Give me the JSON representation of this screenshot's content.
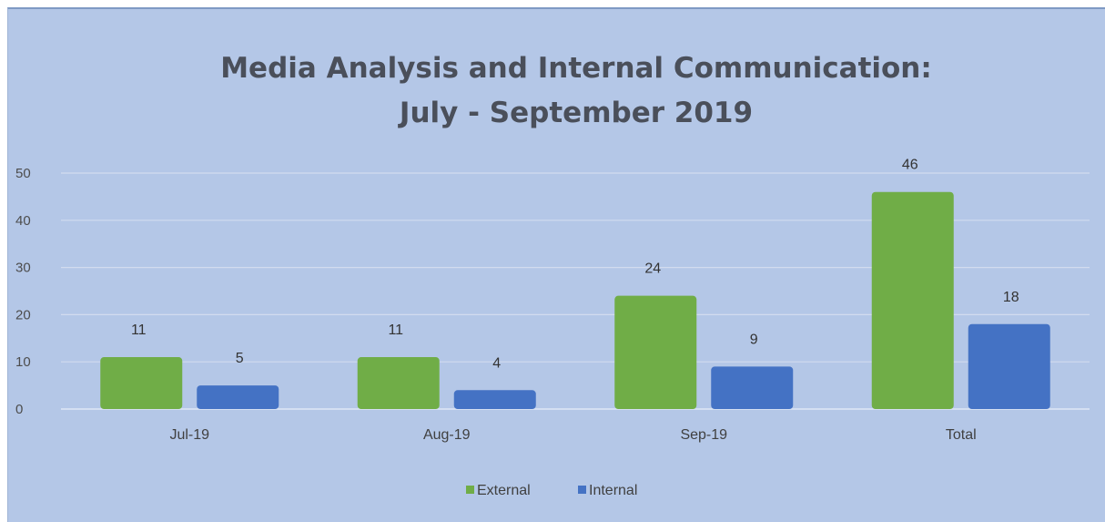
{
  "chart_data": {
    "type": "bar",
    "title_lines": [
      "Media Analysis and Internal Communication:",
      "July - September 2019"
    ],
    "categories": [
      "Jul-19",
      "Aug-19",
      "Sep-19",
      "Total"
    ],
    "series": [
      {
        "name": "External",
        "values": [
          11,
          11,
          24,
          46
        ],
        "color": "#70ad47"
      },
      {
        "name": "Internal",
        "values": [
          5,
          4,
          9,
          18
        ],
        "color": "#4472c4"
      }
    ],
    "yticks": [
      0,
      10,
      20,
      30,
      40,
      50
    ],
    "ylim": [
      0,
      50
    ],
    "grid": true,
    "legend_position": "bottom",
    "data_labels": true
  }
}
